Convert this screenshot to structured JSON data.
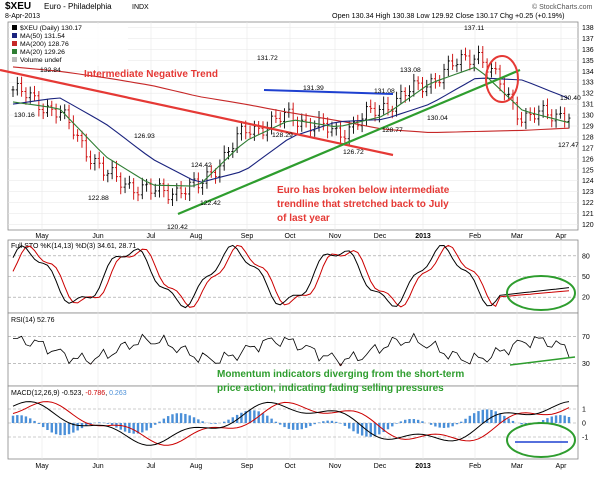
{
  "header": {
    "symbol": "$XEU",
    "name": "Euro - Philadelphia",
    "exchange": "INDX",
    "date": "8-Apr-2013",
    "ohlc": "Open 130.34  High 130.38  Low 129.92  Close 130.17  Chg +0.25 (+0.19%)",
    "watermark": "© StockCharts.com",
    "chg_up_symbol": "▲"
  },
  "legend": {
    "price": "$XEU (Daily) 130.17",
    "ma50": "MA(50) 131.54",
    "ma200": "MA(200) 128.76",
    "ma20": "MA(20) 129.26",
    "volume": "Volume undef"
  },
  "colors": {
    "up": "#000000",
    "down": "#cc0000",
    "ma50": "#1a237e",
    "ma200": "#c62828",
    "ma20": "#2e7d32",
    "annotation_red": "#e53935",
    "annotation_green": "#2e9d2e",
    "annotation_blue": "#1e40d0",
    "grid": "#e6e6e6",
    "macd_hist": "#4a8fd8"
  },
  "x_labels": [
    "May",
    "Jun",
    "Jul",
    "Aug",
    "Sep",
    "Oct",
    "Nov",
    "Dec",
    "2013",
    "Feb",
    "Mar",
    "Apr"
  ],
  "price_axis": {
    "min": 119.5,
    "max": 138.5,
    "ticks": [
      120,
      121,
      122,
      123,
      124,
      125,
      126,
      127,
      128,
      129,
      130,
      131,
      132,
      133,
      134,
      135,
      136,
      137,
      138
    ]
  },
  "annotations": {
    "neg_trend": "Intermediate Negative Trend",
    "broken_line1": "Euro has broken below intermediate",
    "broken_line2": "trendline that stretched back to July",
    "broken_line3": "of last year",
    "momentum_line1": "Momentum indicators diverging from the short-term",
    "momentum_line2": "price action, indicating fading selling pressures"
  },
  "price_labels": [
    "132.84",
    "130.16",
    "122.88",
    "126.93",
    "124.42",
    "122.42",
    "120.42",
    "131.72",
    "128.29",
    "131.39",
    "126.72",
    "131.08",
    "128.77",
    "133.08",
    "130.04",
    "137.11",
    "130.40",
    "127.47"
  ],
  "sto": {
    "title": "Full STO %K(14,13) %D(3) 34.61, 28.71",
    "ticks": [
      "80",
      "50",
      "20"
    ]
  },
  "rsi": {
    "title": "RSI(14) 52.76",
    "ticks": [
      "70",
      "30"
    ]
  },
  "macd": {
    "title_prefix": "MACD(12,26,9)",
    "v1": "-0.523",
    "v2": "-0.786",
    "v3": "0.263",
    "ticks": [
      "1",
      "0",
      "-1"
    ]
  },
  "chart_data": {
    "type": "line",
    "title": "$XEU Euro - Philadelphia",
    "x": [
      "Apr-2012",
      "May",
      "Jun",
      "Jul",
      "Aug",
      "Sep",
      "Oct",
      "Nov",
      "Dec",
      "Jan-2013",
      "Feb",
      "Mar",
      "Apr-2013"
    ],
    "series": [
      {
        "name": "$XEU (Daily)",
        "values": [
          132.3,
          130.2,
          124.5,
          122.9,
          123.4,
          128.5,
          129.9,
          128.3,
          130.8,
          133.1,
          135.8,
          129.8,
          130.2
        ]
      },
      {
        "name": "MA(50)",
        "values": [
          131.0,
          131.6,
          129.2,
          126.0,
          123.8,
          124.9,
          128.0,
          129.4,
          129.6,
          131.0,
          133.4,
          133.2,
          131.5
        ]
      },
      {
        "name": "MA(200)",
        "values": [
          134.4,
          134.0,
          133.4,
          132.7,
          131.7,
          131.0,
          130.2,
          129.5,
          128.7,
          128.4,
          128.5,
          128.6,
          128.8
        ]
      },
      {
        "name": "MA(20)",
        "values": [
          131.2,
          130.6,
          126.2,
          123.6,
          123.5,
          127.6,
          129.6,
          128.9,
          129.9,
          132.9,
          134.4,
          130.4,
          129.3
        ]
      }
    ],
    "ylim": [
      119.5,
      138.5
    ]
  }
}
